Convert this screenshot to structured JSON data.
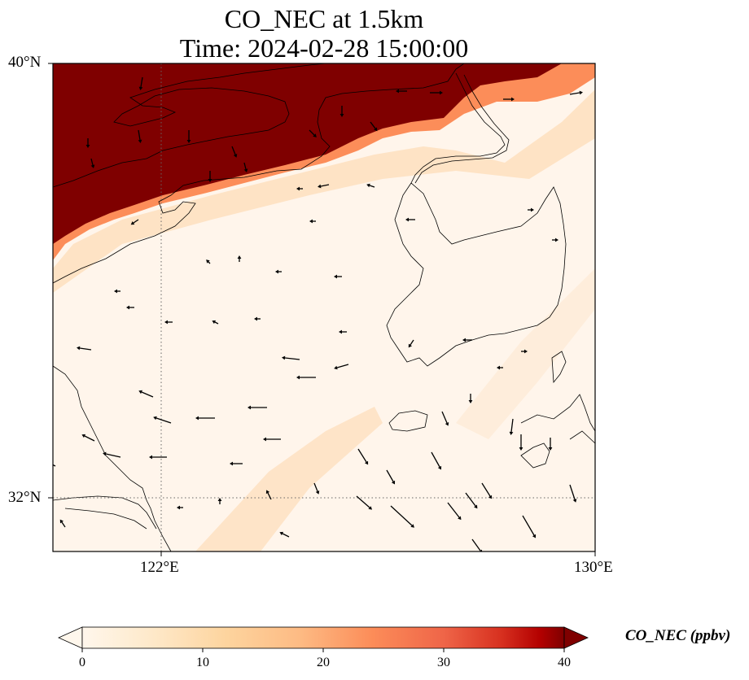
{
  "title": {
    "line1": "CO_NEC at 1.5km",
    "line2": "Time: 2024-02-28 15:00:00"
  },
  "map": {
    "lon_range": [
      119,
      130
    ],
    "lat_range": [
      31,
      40
    ],
    "lat_ticks": [
      {
        "value": 40,
        "label": "40°N"
      },
      {
        "value": 32,
        "label": "32°N"
      }
    ],
    "lon_ticks": [
      {
        "value": 122,
        "label": "122°E"
      },
      {
        "value": 130,
        "label": "130°E"
      }
    ],
    "gridlines": "dotted at 122°E and 32°N",
    "field": "CO_NEC concentration at 1.5km (ppbv), very high over north (Bohai/Liaoning), low elsewhere",
    "colors": {
      "low": "#fff5eb",
      "mid": "#fdae6b",
      "high": "#7f0000",
      "coastline": "#000000",
      "wind_arrow": "#000000"
    }
  },
  "colorbar": {
    "label": "CO_NEC (ppbv)",
    "min": 0,
    "max": 40,
    "ticks": [
      "0",
      "10",
      "20",
      "30",
      "40"
    ],
    "extend": "both",
    "colormap": "OrRd"
  }
}
